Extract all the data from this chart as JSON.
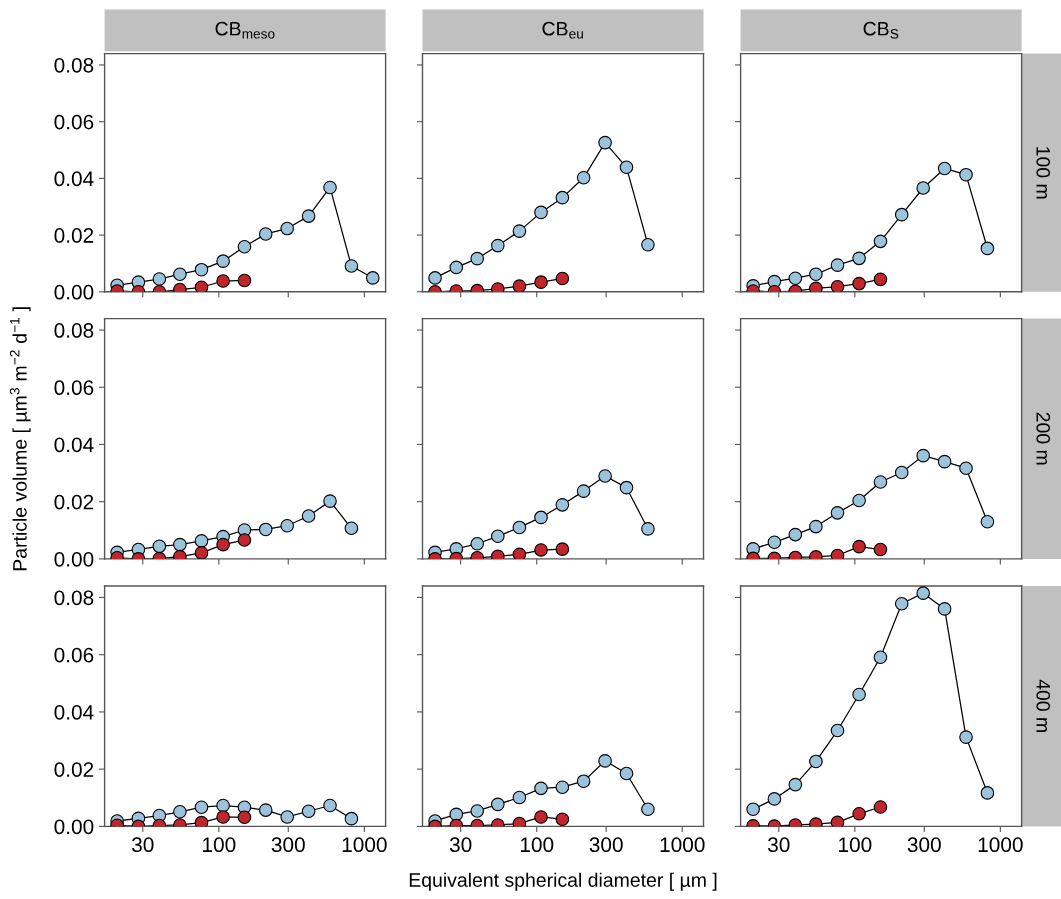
{
  "chart_data": [
    {
      "type": "line",
      "title": "CB$_{meso}$",
      "marker": "circle",
      "tick_labels": "y",
      "xlim": [
        16.4,
        1400
      ],
      "xticks": [
        {
          "value": 30,
          "label": null
        },
        {
          "value": 100,
          "label": null
        },
        {
          "value": 300,
          "label": null
        },
        {
          "value": 1000,
          "label": null
        }
      ],
      "log": "x",
      "ylim": [
        0,
        0.084
      ],
      "yticks": [
        {
          "value": 0,
          "label": "0.00"
        },
        {
          "value": 0.02,
          "label": "0.02"
        },
        {
          "value": 0.04,
          "label": "0.04"
        },
        {
          "value": 0.06,
          "label": "0.06"
        },
        {
          "value": 0.08,
          "label": "0.08"
        }
      ],
      "series": [
        {
          "color": "#9cc3dc",
          "x": [
            20,
            28,
            39,
            54,
            76,
            107,
            150,
            210,
            295,
            414,
            581,
            815,
            1143
          ],
          "values": [
            0.0023,
            0.0034,
            0.0045,
            0.0062,
            0.0078,
            0.0108,
            0.0159,
            0.0204,
            0.0223,
            0.0267,
            0.0368,
            0.0091,
            0.0049
          ]
        },
        {
          "color": "#c0272d",
          "x": [
            20,
            28,
            39,
            54,
            76,
            107,
            150
          ],
          "values": [
            0.0003,
            0,
            0,
            0.0008,
            0.0016,
            0.0038,
            0.004
          ]
        }
      ]
    },
    {
      "type": "line",
      "title": "CB$_{eu}$",
      "marker": "circle",
      "tick_labels": false,
      "xlim": [
        16.4,
        1400
      ],
      "xticks": [
        {
          "value": 30,
          "label": null
        },
        {
          "value": 100,
          "label": null
        },
        {
          "value": 300,
          "label": null
        },
        {
          "value": 1000,
          "label": null
        }
      ],
      "log": "x",
      "ylim": [
        0,
        0.084
      ],
      "yticks": [
        {
          "value": 0,
          "label": null
        },
        {
          "value": 0.02,
          "label": null
        },
        {
          "value": 0.04,
          "label": null
        },
        {
          "value": 0.06,
          "label": null
        },
        {
          "value": 0.08,
          "label": null
        }
      ],
      "series": [
        {
          "color": "#9cc3dc",
          "x": [
            20,
            28,
            39,
            54,
            76,
            107,
            150,
            210,
            295,
            414,
            581
          ],
          "values": [
            0.0049,
            0.0086,
            0.0117,
            0.0163,
            0.0214,
            0.028,
            0.0332,
            0.0402,
            0.0526,
            0.0439,
            0.0166
          ]
        },
        {
          "color": "#c0272d",
          "x": [
            20,
            28,
            39,
            54,
            76,
            107,
            150
          ],
          "values": [
            0,
            0.0003,
            0.0004,
            0.001,
            0.002,
            0.0034,
            0.0047
          ]
        }
      ]
    },
    {
      "type": "line",
      "title": "CB$_{S}$",
      "y2label": "100 m",
      "marker": "circle",
      "tick_labels": false,
      "xlim": [
        16.4,
        1400
      ],
      "xticks": [
        {
          "value": 30,
          "label": null
        },
        {
          "value": 100,
          "label": null
        },
        {
          "value": 300,
          "label": null
        },
        {
          "value": 1000,
          "label": null
        }
      ],
      "log": "x",
      "ylim": [
        0,
        0.084
      ],
      "yticks": [
        {
          "value": 0,
          "label": null
        },
        {
          "value": 0.02,
          "label": null
        },
        {
          "value": 0.04,
          "label": null
        },
        {
          "value": 0.06,
          "label": null
        },
        {
          "value": 0.08,
          "label": null
        }
      ],
      "series": [
        {
          "color": "#9cc3dc",
          "x": [
            20,
            28,
            39,
            54,
            76,
            107,
            150,
            210,
            295,
            414,
            581,
            815
          ],
          "values": [
            0.0021,
            0.0036,
            0.0048,
            0.0062,
            0.0094,
            0.0118,
            0.0178,
            0.0272,
            0.0366,
            0.0435,
            0.0413,
            0.0153
          ]
        },
        {
          "color": "#c0272d",
          "x": [
            20,
            28,
            39,
            54,
            76,
            107,
            150
          ],
          "values": [
            0.0003,
            0,
            0.0002,
            0.0012,
            0.0018,
            0.0029,
            0.0044
          ]
        }
      ]
    },
    {
      "type": "line",
      "ylabel": "Particle volume [ µm$^{3}$ m$^{−2}$ d$^{−1}$ ]",
      "marker": "circle",
      "tick_labels": "y",
      "xlim": [
        16.4,
        1400
      ],
      "xticks": [
        {
          "value": 30,
          "label": null
        },
        {
          "value": 100,
          "label": null
        },
        {
          "value": 300,
          "label": null
        },
        {
          "value": 1000,
          "label": null
        }
      ],
      "log": "x",
      "ylim": [
        0,
        0.084
      ],
      "yticks": [
        {
          "value": 0,
          "label": "0.00"
        },
        {
          "value": 0.02,
          "label": "0.02"
        },
        {
          "value": 0.04,
          "label": "0.04"
        },
        {
          "value": 0.06,
          "label": "0.06"
        },
        {
          "value": 0.08,
          "label": "0.08"
        }
      ],
      "series": [
        {
          "color": "#9cc3dc",
          "x": [
            20,
            28,
            39,
            54,
            76,
            107,
            150,
            210,
            295,
            414,
            581,
            815
          ],
          "values": [
            0.0023,
            0.0033,
            0.0044,
            0.005,
            0.0063,
            0.0078,
            0.0101,
            0.0103,
            0.0116,
            0.015,
            0.0202,
            0.0107
          ]
        },
        {
          "color": "#c0272d",
          "x": [
            20,
            28,
            39,
            54,
            76,
            107,
            150
          ],
          "values": [
            0.0004,
            0,
            0.0001,
            0.0008,
            0.0021,
            0.005,
            0.0066
          ]
        }
      ]
    },
    {
      "type": "line",
      "marker": "circle",
      "tick_labels": false,
      "xlim": [
        16.4,
        1400
      ],
      "xticks": [
        {
          "value": 30,
          "label": null
        },
        {
          "value": 100,
          "label": null
        },
        {
          "value": 300,
          "label": null
        },
        {
          "value": 1000,
          "label": null
        }
      ],
      "log": "x",
      "ylim": [
        0,
        0.084
      ],
      "yticks": [
        {
          "value": 0,
          "label": null
        },
        {
          "value": 0.02,
          "label": null
        },
        {
          "value": 0.04,
          "label": null
        },
        {
          "value": 0.06,
          "label": null
        },
        {
          "value": 0.08,
          "label": null
        }
      ],
      "series": [
        {
          "color": "#9cc3dc",
          "x": [
            20,
            28,
            39,
            54,
            76,
            107,
            150,
            210,
            295,
            414,
            581
          ],
          "values": [
            0.0023,
            0.0035,
            0.0053,
            0.0079,
            0.011,
            0.0145,
            0.0189,
            0.0237,
            0.029,
            0.0249,
            0.0105
          ]
        },
        {
          "color": "#c0272d",
          "x": [
            20,
            28,
            39,
            54,
            76,
            107,
            150
          ],
          "values": [
            0,
            0.0001,
            0.0004,
            0.0009,
            0.0016,
            0.0031,
            0.0034
          ]
        }
      ]
    },
    {
      "type": "line",
      "y2label": "200 m",
      "marker": "circle",
      "tick_labels": false,
      "xlim": [
        16.4,
        1400
      ],
      "xticks": [
        {
          "value": 30,
          "label": null
        },
        {
          "value": 100,
          "label": null
        },
        {
          "value": 300,
          "label": null
        },
        {
          "value": 1000,
          "label": null
        }
      ],
      "log": "x",
      "ylim": [
        0,
        0.084
      ],
      "yticks": [
        {
          "value": 0,
          "label": null
        },
        {
          "value": 0.02,
          "label": null
        },
        {
          "value": 0.04,
          "label": null
        },
        {
          "value": 0.06,
          "label": null
        },
        {
          "value": 0.08,
          "label": null
        }
      ],
      "series": [
        {
          "color": "#9cc3dc",
          "x": [
            20,
            28,
            39,
            54,
            76,
            107,
            150,
            210,
            295,
            414,
            581,
            815
          ],
          "values": [
            0.0035,
            0.0058,
            0.0085,
            0.0113,
            0.0161,
            0.0204,
            0.0269,
            0.0302,
            0.0361,
            0.034,
            0.0317,
            0.013
          ]
        },
        {
          "color": "#c0272d",
          "x": [
            20,
            28,
            39,
            54,
            76,
            107,
            150
          ],
          "values": [
            0.0002,
            0.0002,
            0.0005,
            0.0007,
            0.0012,
            0.0043,
            0.0033
          ]
        }
      ]
    },
    {
      "type": "line",
      "marker": "circle",
      "xlim": [
        16.4,
        1400
      ],
      "xticks": [
        30,
        100,
        300,
        1000
      ],
      "log": "x",
      "ylim": [
        0,
        0.084
      ],
      "yticks": [
        {
          "value": 0,
          "label": "0.00"
        },
        {
          "value": 0.02,
          "label": "0.02"
        },
        {
          "value": 0.04,
          "label": "0.04"
        },
        {
          "value": 0.06,
          "label": "0.06"
        },
        {
          "value": 0.08,
          "label": "0.08"
        }
      ],
      "series": [
        {
          "color": "#9cc3dc",
          "x": [
            20,
            28,
            39,
            54,
            76,
            107,
            150,
            210,
            295,
            414,
            581,
            815
          ],
          "values": [
            0.0019,
            0.0028,
            0.0038,
            0.0051,
            0.0067,
            0.0073,
            0.0067,
            0.0057,
            0.0033,
            0.0053,
            0.0073,
            0.0027
          ]
        },
        {
          "color": "#c0272d",
          "x": [
            20,
            28,
            39,
            54,
            76,
            107,
            150
          ],
          "values": [
            0.0004,
            0,
            0.0003,
            0.0005,
            0.0013,
            0.0033,
            0.0032
          ]
        }
      ]
    },
    {
      "type": "line",
      "xlabel": "Equivalent spherical diameter [ µm ]",
      "marker": "circle",
      "tick_labels": "x",
      "xlim": [
        16.4,
        1400
      ],
      "xticks": [
        30,
        100,
        300,
        1000
      ],
      "log": "x",
      "ylim": [
        0,
        0.084
      ],
      "yticks": [
        {
          "value": 0,
          "label": null
        },
        {
          "value": 0.02,
          "label": null
        },
        {
          "value": 0.04,
          "label": null
        },
        {
          "value": 0.06,
          "label": null
        },
        {
          "value": 0.08,
          "label": null
        }
      ],
      "series": [
        {
          "color": "#9cc3dc",
          "x": [
            20,
            28,
            39,
            54,
            76,
            107,
            150,
            210,
            295,
            414,
            581
          ],
          "values": [
            0.0019,
            0.0042,
            0.0054,
            0.0077,
            0.0101,
            0.0133,
            0.0137,
            0.0158,
            0.0229,
            0.0185,
            0.006
          ]
        },
        {
          "color": "#c0272d",
          "x": [
            20,
            28,
            39,
            54,
            76,
            107,
            150
          ],
          "values": [
            0,
            0.0003,
            0.0003,
            0.0005,
            0.001,
            0.0033,
            0.0025
          ]
        }
      ]
    },
    {
      "type": "line",
      "y2label": "400 m",
      "marker": "circle",
      "tick_labels": "x",
      "xlim": [
        16.4,
        1400
      ],
      "xticks": [
        30,
        100,
        300,
        1000
      ],
      "log": "x",
      "ylim": [
        0,
        0.084
      ],
      "yticks": [
        {
          "value": 0,
          "label": null
        },
        {
          "value": 0.02,
          "label": null
        },
        {
          "value": 0.04,
          "label": null
        },
        {
          "value": 0.06,
          "label": null
        },
        {
          "value": 0.08,
          "label": null
        }
      ],
      "series": [
        {
          "color": "#9cc3dc",
          "x": [
            20,
            28,
            39,
            54,
            76,
            107,
            150,
            210,
            295,
            414,
            581,
            815
          ],
          "values": [
            0.006,
            0.0096,
            0.0146,
            0.0227,
            0.0335,
            0.0461,
            0.0591,
            0.0778,
            0.0815,
            0.076,
            0.0312,
            0.0117
          ]
        },
        {
          "color": "#c0272d",
          "x": [
            20,
            28,
            39,
            54,
            76,
            107,
            150
          ],
          "values": [
            0.0002,
            0.0001,
            0.0005,
            0.0008,
            0.0014,
            0.0044,
            0.0068
          ]
        }
      ]
    }
  ]
}
